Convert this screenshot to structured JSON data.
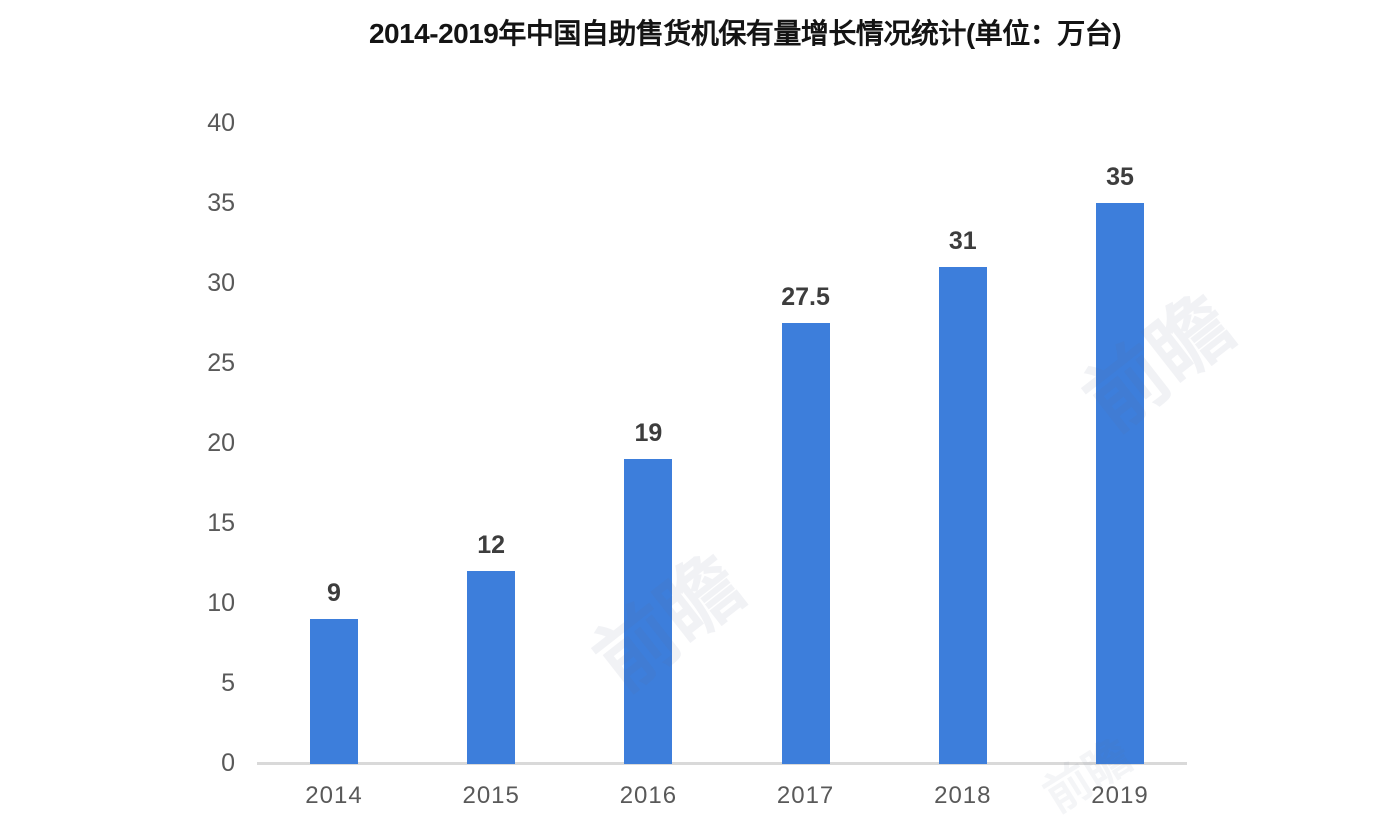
{
  "chart_data": {
    "type": "bar",
    "title": "2014-2019年中国自助售货机保有量增长情况统计(单位：万台)",
    "categories": [
      "2014",
      "2015",
      "2016",
      "2017",
      "2018",
      "2019"
    ],
    "values": [
      9,
      12,
      19,
      27.5,
      31,
      35
    ],
    "value_labels": [
      "9",
      "12",
      "19",
      "27.5",
      "31",
      "35"
    ],
    "xlabel": "",
    "ylabel": "",
    "ylim": [
      0,
      40
    ],
    "yticks": [
      0,
      5,
      10,
      15,
      20,
      25,
      30,
      35,
      40
    ],
    "grid": false,
    "legend_position": "none",
    "bar_color": "#3d7edb",
    "axis_line_color": "#d9d9d9",
    "tick_label_color": "#595959",
    "value_label_color": "#3d3d3d",
    "title_color": "#141414"
  },
  "watermark": {
    "text": "前瞻"
  }
}
